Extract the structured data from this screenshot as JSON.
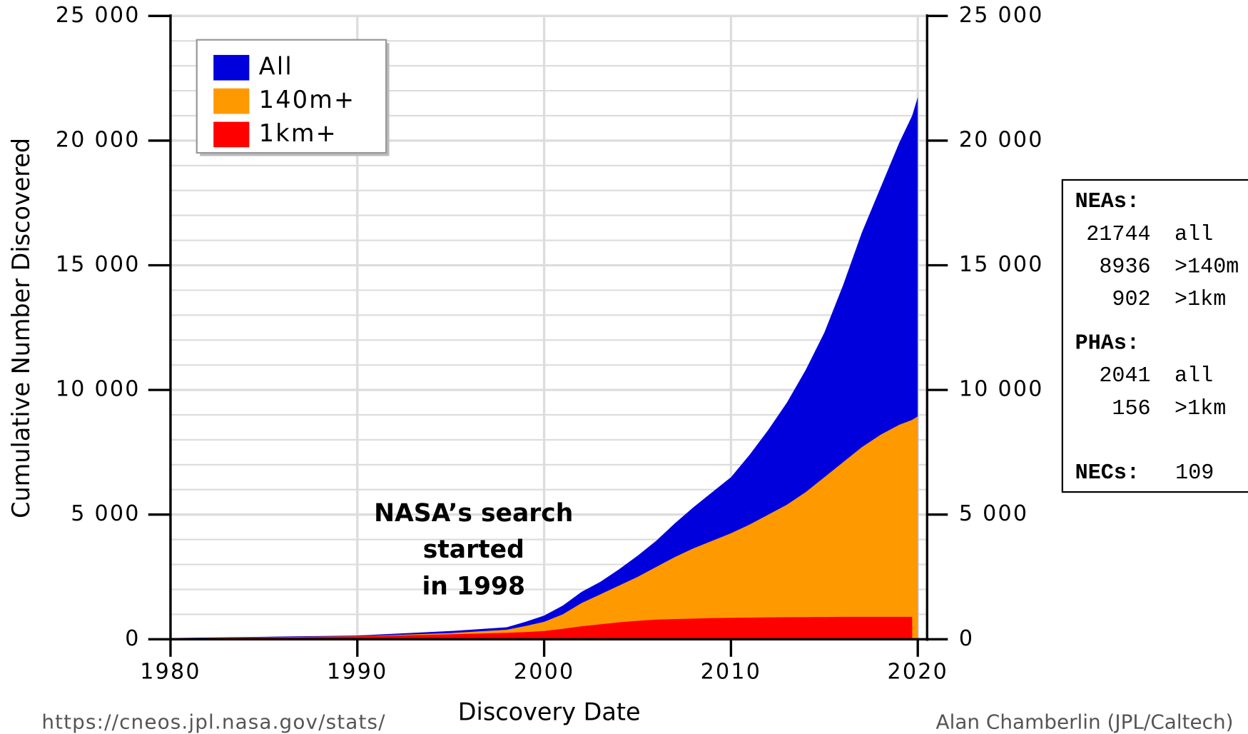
{
  "chart_data": {
    "type": "area",
    "x_label": "Discovery Date",
    "y_label": "Cumulative Number Discovered",
    "x": [
      1980,
      1985,
      1990,
      1995,
      1998,
      1999,
      2000,
      2001,
      2002,
      2003,
      2004,
      2005,
      2006,
      2007,
      2008,
      2009,
      2010,
      2011,
      2012,
      2013,
      2014,
      2015,
      2016,
      2017,
      2018,
      2019,
      2019.7,
      2020
    ],
    "series": [
      {
        "name": "All",
        "color": "#0000dd",
        "values": [
          50,
          100,
          150,
          330,
          480,
          700,
          950,
          1350,
          1900,
          2300,
          2800,
          3350,
          3950,
          4650,
          5300,
          5900,
          6500,
          7400,
          8400,
          9500,
          10800,
          12300,
          14200,
          16300,
          18100,
          19900,
          21000,
          21744
        ]
      },
      {
        "name": "140m+",
        "color": "#ff9900",
        "values": [
          40,
          80,
          120,
          250,
          380,
          530,
          700,
          1000,
          1450,
          1800,
          2150,
          2500,
          2900,
          3300,
          3650,
          3950,
          4250,
          4600,
          5000,
          5400,
          5900,
          6500,
          7100,
          7700,
          8200,
          8600,
          8800,
          8936
        ]
      },
      {
        "name": "1km+",
        "color": "#ff0000",
        "values": [
          40,
          70,
          110,
          200,
          260,
          290,
          330,
          420,
          520,
          600,
          680,
          740,
          790,
          810,
          830,
          850,
          860,
          870,
          880,
          885,
          890,
          895,
          900,
          900,
          902,
          902,
          902,
          null
        ]
      }
    ],
    "xlim": [
      1980,
      2020.5
    ],
    "xticks": [
      1980,
      1990,
      2000,
      2010,
      2020
    ],
    "ylim": [
      0,
      25000
    ],
    "yticks": [
      0,
      {
        "value": 5000,
        "label": "5 000"
      },
      {
        "value": 10000,
        "label": "10 000"
      },
      {
        "value": 15000,
        "label": "15 000"
      },
      {
        "value": 20000,
        "label": "20 000"
      },
      {
        "value": 25000,
        "label": "25 000"
      }
    ],
    "y2lim": [
      0,
      25000
    ],
    "y2ticks": [
      0,
      {
        "value": 5000,
        "label": "5 000"
      },
      {
        "value": 10000,
        "label": "10 000"
      },
      {
        "value": 15000,
        "label": "15 000"
      },
      {
        "value": 20000,
        "label": "20 000"
      },
      {
        "value": 25000,
        "label": "25 000"
      }
    ],
    "y_minor_grid": [
      1000,
      2000,
      3000,
      4000,
      6000,
      7000,
      8000,
      9000,
      11000,
      12000,
      13000,
      14000,
      16000,
      17000,
      18000,
      19000,
      21000,
      22000,
      23000,
      24000
    ],
    "grid": true,
    "legend": "upper left",
    "annotation": [
      "NASA’s search",
      "started",
      "in 1998"
    ],
    "stats_box": [
      {
        "title": "NEAs:",
        "rows": [
          [
            "21744",
            "all"
          ],
          [
            "8936",
            ">140m"
          ],
          [
            "902",
            ">1km"
          ]
        ]
      },
      {
        "title": "PHAs:",
        "rows": [
          [
            "2041",
            "all"
          ],
          [
            "156",
            ">1km"
          ]
        ]
      },
      {
        "title": "NECs:",
        "rows": [
          [
            "109",
            ""
          ]
        ]
      }
    ],
    "source": "https://cneos.jpl.nasa.gov/stats/",
    "credit": "Alan Chamberlin (JPL/Caltech)"
  }
}
